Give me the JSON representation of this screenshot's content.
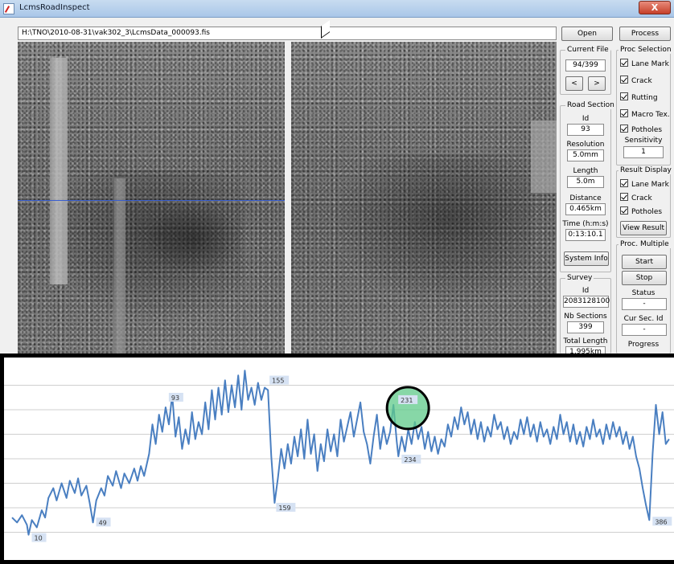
{
  "window": {
    "title": "LcmsRoadInspect",
    "close_label": "X",
    "file_path": "H:\\TNO\\2010-08-31\\vak302_3\\LcmsData_000093.fis"
  },
  "toolbar": {
    "open_label": "Open",
    "process_label": "Process"
  },
  "current_file": {
    "title": "Current File",
    "value": "94/399",
    "prev_label": "<",
    "next_label": ">"
  },
  "road_section": {
    "title": "Road Section",
    "id_label": "Id",
    "id_value": "93",
    "resolution_label": "Resolution",
    "resolution_value": "5.0mm",
    "length_label": "Length",
    "length_value": "5.0m",
    "distance_label": "Distance",
    "distance_value": "0.465km",
    "time_label": "Time (h:m:s)",
    "time_value": "0:13:10.1",
    "system_info_label": "System Info"
  },
  "survey": {
    "title": "Survey",
    "id_label": "Id",
    "id_value": "2083128100",
    "nb_sections_label": "Nb Sections",
    "nb_sections_value": "399",
    "total_length_label": "Total Length",
    "total_length_value": "1.995km"
  },
  "proc_selection": {
    "title": "Proc Selection",
    "items": [
      "Lane Mark",
      "Crack",
      "Rutting",
      "Macro Tex.",
      "Potholes"
    ],
    "sensitivity_label": "Sensitivity",
    "sensitivity_value": "1"
  },
  "result_display": {
    "title": "Result Display",
    "items": [
      "Lane Mark",
      "Crack",
      "Potholes"
    ],
    "view_result_label": "View Result"
  },
  "proc_multiple": {
    "title": "Proc. Multiple",
    "start_label": "Start",
    "stop_label": "Stop",
    "status_label": "Status",
    "status_value": "-",
    "cur_sec_label": "Cur Sec. Id",
    "cur_sec_value": "-",
    "progress_label": "Progress"
  },
  "colors": {
    "line": "#4a7fc1",
    "grid": "#cfcfcf",
    "label_bg": "#d6e2f3",
    "highlight_fill": "#5fc98a",
    "highlight_stroke": "#000000"
  },
  "chart_data": {
    "type": "line",
    "title": "",
    "xlabel": "",
    "ylabel": "",
    "grid": true,
    "x_range": [
      0,
      399
    ],
    "y_range": [
      0,
      8
    ],
    "annotations": [
      {
        "label": "10",
        "x": 10,
        "y": 0.9
      },
      {
        "label": "49",
        "x": 49,
        "y": 1.4
      },
      {
        "label": "93",
        "x": 93,
        "y": 6.1
      },
      {
        "label": "155",
        "x": 155,
        "y": 6.8
      },
      {
        "label": "159",
        "x": 159,
        "y": 2.2
      },
      {
        "label": "231",
        "x": 231,
        "y": 6.2
      },
      {
        "label": "234",
        "x": 234,
        "y": 4.1
      },
      {
        "label": "386",
        "x": 386,
        "y": 1.5
      }
    ],
    "highlight": {
      "label": "231",
      "x": 231,
      "y": 6.2
    },
    "series": [
      {
        "values": [
          [
            0,
            1.6
          ],
          [
            3,
            1.4
          ],
          [
            6,
            1.7
          ],
          [
            9,
            1.3
          ],
          [
            10,
            0.9
          ],
          [
            12,
            1.5
          ],
          [
            15,
            1.2
          ],
          [
            18,
            1.9
          ],
          [
            20,
            1.6
          ],
          [
            22,
            2.4
          ],
          [
            25,
            2.8
          ],
          [
            27,
            2.3
          ],
          [
            30,
            3.0
          ],
          [
            33,
            2.4
          ],
          [
            35,
            3.1
          ],
          [
            38,
            2.6
          ],
          [
            40,
            3.2
          ],
          [
            42,
            2.5
          ],
          [
            45,
            2.9
          ],
          [
            47,
            2.2
          ],
          [
            49,
            1.4
          ],
          [
            51,
            2.3
          ],
          [
            54,
            2.8
          ],
          [
            56,
            2.5
          ],
          [
            58,
            3.3
          ],
          [
            61,
            2.9
          ],
          [
            63,
            3.5
          ],
          [
            66,
            2.8
          ],
          [
            68,
            3.4
          ],
          [
            71,
            3.0
          ],
          [
            74,
            3.6
          ],
          [
            76,
            3.1
          ],
          [
            78,
            3.7
          ],
          [
            80,
            3.3
          ],
          [
            83,
            4.2
          ],
          [
            85,
            5.4
          ],
          [
            87,
            4.6
          ],
          [
            89,
            5.8
          ],
          [
            91,
            5.1
          ],
          [
            93,
            6.1
          ],
          [
            95,
            5.4
          ],
          [
            97,
            6.6
          ],
          [
            99,
            4.9
          ],
          [
            101,
            5.7
          ],
          [
            103,
            4.4
          ],
          [
            105,
            5.2
          ],
          [
            107,
            4.6
          ],
          [
            109,
            5.9
          ],
          [
            111,
            4.8
          ],
          [
            113,
            5.5
          ],
          [
            115,
            5.0
          ],
          [
            117,
            6.3
          ],
          [
            119,
            5.2
          ],
          [
            121,
            6.8
          ],
          [
            123,
            5.6
          ],
          [
            125,
            6.9
          ],
          [
            127,
            5.8
          ],
          [
            129,
            7.2
          ],
          [
            131,
            5.9
          ],
          [
            133,
            7.0
          ],
          [
            135,
            6.1
          ],
          [
            137,
            7.4
          ],
          [
            139,
            6.0
          ],
          [
            141,
            7.6
          ],
          [
            143,
            6.4
          ],
          [
            145,
            6.9
          ],
          [
            147,
            6.2
          ],
          [
            149,
            7.1
          ],
          [
            151,
            6.4
          ],
          [
            153,
            6.9
          ],
          [
            155,
            6.8
          ],
          [
            157,
            4.1
          ],
          [
            159,
            2.2
          ],
          [
            161,
            3.2
          ],
          [
            163,
            4.4
          ],
          [
            165,
            3.6
          ],
          [
            167,
            4.6
          ],
          [
            169,
            3.8
          ],
          [
            171,
            4.9
          ],
          [
            173,
            4.1
          ],
          [
            175,
            5.2
          ],
          [
            177,
            4.0
          ],
          [
            179,
            5.6
          ],
          [
            181,
            4.2
          ],
          [
            183,
            5.0
          ],
          [
            185,
            3.5
          ],
          [
            187,
            4.6
          ],
          [
            189,
            3.9
          ],
          [
            191,
            5.2
          ],
          [
            193,
            4.3
          ],
          [
            195,
            5.0
          ],
          [
            197,
            4.1
          ],
          [
            199,
            5.6
          ],
          [
            201,
            4.7
          ],
          [
            203,
            5.3
          ],
          [
            205,
            5.9
          ],
          [
            207,
            4.9
          ],
          [
            209,
            5.6
          ],
          [
            211,
            6.3
          ],
          [
            213,
            5.1
          ],
          [
            215,
            4.6
          ],
          [
            217,
            3.8
          ],
          [
            219,
            4.9
          ],
          [
            221,
            5.8
          ],
          [
            223,
            4.4
          ],
          [
            225,
            5.3
          ],
          [
            227,
            4.6
          ],
          [
            229,
            5.1
          ],
          [
            231,
            6.2
          ],
          [
            233,
            4.7
          ],
          [
            234,
            4.1
          ],
          [
            236,
            4.9
          ],
          [
            238,
            4.3
          ],
          [
            240,
            5.2
          ],
          [
            242,
            4.6
          ],
          [
            244,
            5.5
          ],
          [
            246,
            4.8
          ],
          [
            248,
            5.3
          ],
          [
            250,
            4.4
          ],
          [
            252,
            5.1
          ],
          [
            254,
            4.3
          ],
          [
            256,
            4.9
          ],
          [
            258,
            4.2
          ],
          [
            260,
            4.8
          ],
          [
            262,
            4.5
          ],
          [
            264,
            5.4
          ],
          [
            266,
            4.9
          ],
          [
            268,
            5.7
          ],
          [
            270,
            5.2
          ],
          [
            272,
            6.1
          ],
          [
            274,
            5.4
          ],
          [
            276,
            5.9
          ],
          [
            278,
            5.0
          ],
          [
            280,
            5.6
          ],
          [
            282,
            4.8
          ],
          [
            284,
            5.5
          ],
          [
            286,
            4.7
          ],
          [
            288,
            5.3
          ],
          [
            290,
            4.9
          ],
          [
            292,
            5.8
          ],
          [
            294,
            5.2
          ],
          [
            296,
            5.5
          ],
          [
            298,
            4.8
          ],
          [
            300,
            5.3
          ],
          [
            302,
            4.6
          ],
          [
            304,
            5.1
          ],
          [
            306,
            4.8
          ],
          [
            308,
            5.6
          ],
          [
            310,
            5.0
          ],
          [
            312,
            5.7
          ],
          [
            314,
            4.9
          ],
          [
            316,
            5.4
          ],
          [
            318,
            4.7
          ],
          [
            320,
            5.5
          ],
          [
            322,
            4.9
          ],
          [
            324,
            5.2
          ],
          [
            326,
            4.6
          ],
          [
            328,
            5.3
          ],
          [
            330,
            4.8
          ],
          [
            332,
            5.8
          ],
          [
            334,
            5.0
          ],
          [
            336,
            5.5
          ],
          [
            338,
            4.7
          ],
          [
            340,
            5.4
          ],
          [
            342,
            4.6
          ],
          [
            344,
            5.1
          ],
          [
            346,
            4.5
          ],
          [
            348,
            5.3
          ],
          [
            350,
            4.8
          ],
          [
            352,
            5.6
          ],
          [
            354,
            4.9
          ],
          [
            356,
            5.2
          ],
          [
            358,
            4.6
          ],
          [
            360,
            5.4
          ],
          [
            362,
            4.8
          ],
          [
            364,
            5.5
          ],
          [
            366,
            4.9
          ],
          [
            368,
            5.3
          ],
          [
            370,
            4.6
          ],
          [
            372,
            5.1
          ],
          [
            374,
            4.4
          ],
          [
            376,
            4.9
          ],
          [
            378,
            4.1
          ],
          [
            380,
            3.6
          ],
          [
            382,
            2.8
          ],
          [
            384,
            2.1
          ],
          [
            386,
            1.5
          ],
          [
            388,
            4.2
          ],
          [
            390,
            6.2
          ],
          [
            392,
            5.0
          ],
          [
            394,
            5.9
          ],
          [
            396,
            4.6
          ],
          [
            398,
            4.8
          ]
        ]
      }
    ]
  }
}
